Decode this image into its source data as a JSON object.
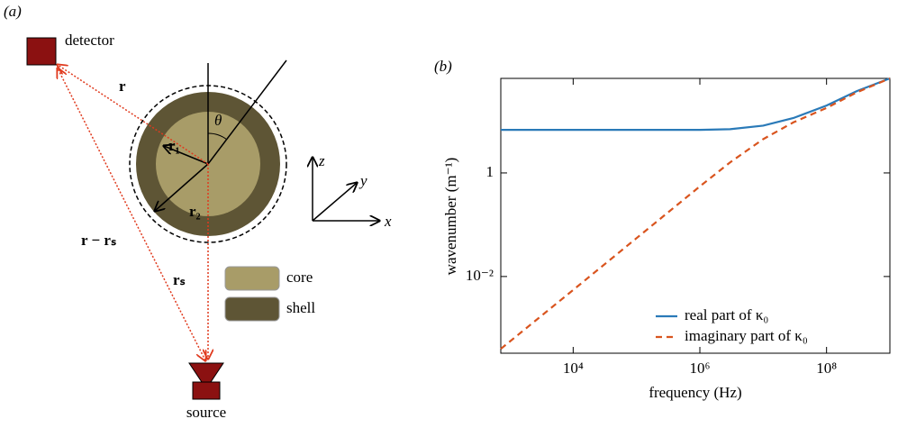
{
  "diagram": {
    "label": "(a)",
    "detector": "detector",
    "source": "source",
    "r": "r",
    "theta": "θ",
    "r1": "r₁",
    "r2": "r₂",
    "r_minus_rs": "r − rₛ",
    "rs": "rₛ",
    "axes": {
      "z": "z",
      "y": "y",
      "x": "x"
    },
    "legend": [
      {
        "name": "core",
        "color": "#a89c68"
      },
      {
        "name": "shell",
        "color": "#5e5535"
      }
    ]
  },
  "chart_data": {
    "type": "line",
    "panel_label": "(b)",
    "x_label": "frequency (Hz)",
    "y_label": "wavenumber (m⁻¹)",
    "x_log": true,
    "y_log": true,
    "x": [
      720,
      10000,
      100000,
      1000000,
      3000000,
      10000000,
      30000000,
      100000000,
      300000000,
      1000000000
    ],
    "series": [
      {
        "name": "real part of κ₀",
        "color": "#2a7ab8",
        "dash": false,
        "values": [
          6.8,
          6.8,
          6.8,
          6.8,
          7.0,
          8.2,
          11.5,
          20,
          38,
          67
        ]
      },
      {
        "name": "imaginary part of κ₀",
        "color": "#d9541e",
        "dash": true,
        "values": [
          0.0004,
          0.0055,
          0.055,
          0.55,
          1.6,
          4.5,
          9.5,
          18,
          36,
          67
        ]
      }
    ],
    "xlim": [
      720,
      1000000000
    ],
    "ylim": [
      0.00033,
      67
    ],
    "xticks": [
      {
        "value": 10000,
        "label": "10⁴"
      },
      {
        "value": 1000000,
        "label": "10⁶"
      },
      {
        "value": 100000000,
        "label": "10⁸"
      }
    ],
    "yticks": [
      {
        "value": 0.01,
        "label": "10⁻²"
      },
      1
    ],
    "legend": "lower right"
  }
}
